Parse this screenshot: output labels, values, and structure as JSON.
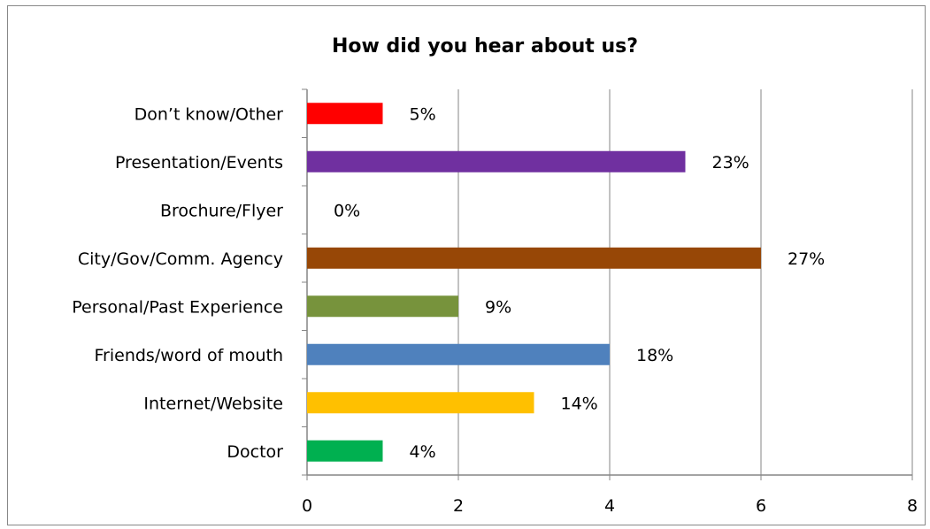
{
  "chart_data": {
    "type": "bar",
    "orientation": "horizontal",
    "title": "How did you hear about us?",
    "xlabel": "",
    "ylabel": "",
    "xlim": [
      0,
      8
    ],
    "xticks": [
      "0",
      "2",
      "4",
      "6",
      "8"
    ],
    "grid": "vertical",
    "legend": "none",
    "categories": [
      "Don’t know/Other",
      "Presentation/Events",
      "Brochure/Flyer",
      "City/Gov/Comm. Agency",
      "Personal/Past Experience",
      "Friends/word of mouth",
      "Internet/Website",
      "Doctor"
    ],
    "values": [
      1,
      5,
      0,
      6,
      2,
      4,
      3,
      1
    ],
    "data_labels": [
      "5%",
      "23%",
      "0%",
      "27%",
      "9%",
      "18%",
      "14%",
      "4%"
    ],
    "colors": [
      "#ff0000",
      "#7030a0",
      "#ffffff",
      "#974706",
      "#77933c",
      "#4f81bd",
      "#ffc000",
      "#00b050"
    ]
  }
}
